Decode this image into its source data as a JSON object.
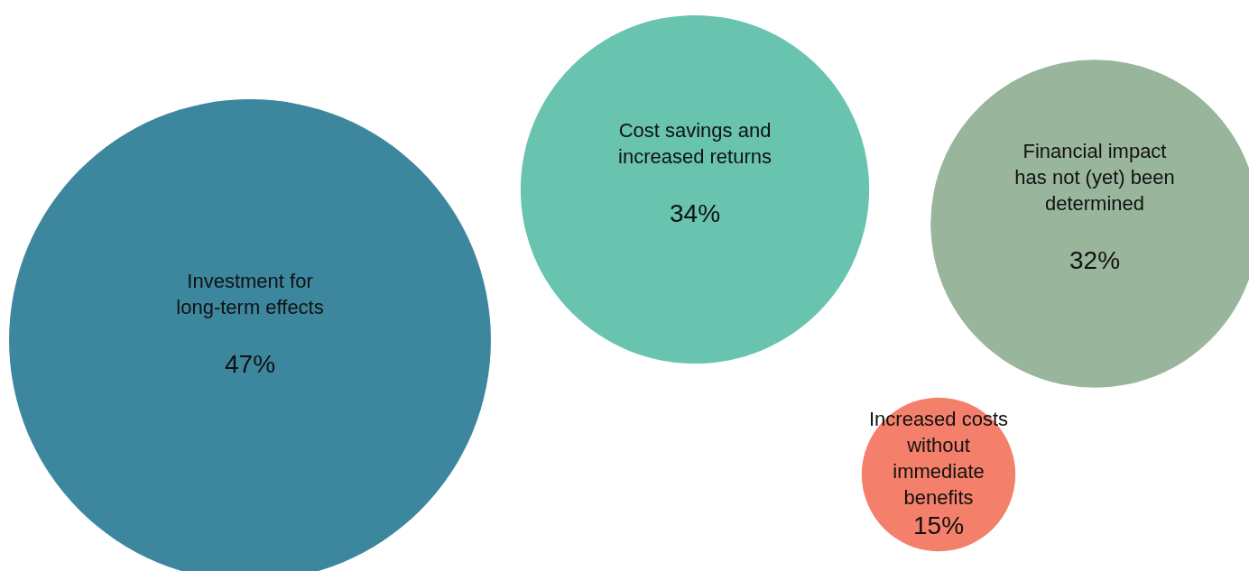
{
  "chart_data": {
    "type": "other",
    "categories": [
      "Investment for long-term effects",
      "Cost savings and increased returns",
      "Financial impact has not (yet) been determined",
      "Increased costs without immediate benefits"
    ],
    "values": [
      47,
      34,
      32,
      15
    ],
    "colors": [
      "#3c879e",
      "#68c3af",
      "#99b69c",
      "#f47f6a"
    ],
    "value_labels": [
      "47%",
      "34%",
      "32%",
      "15%"
    ]
  }
}
